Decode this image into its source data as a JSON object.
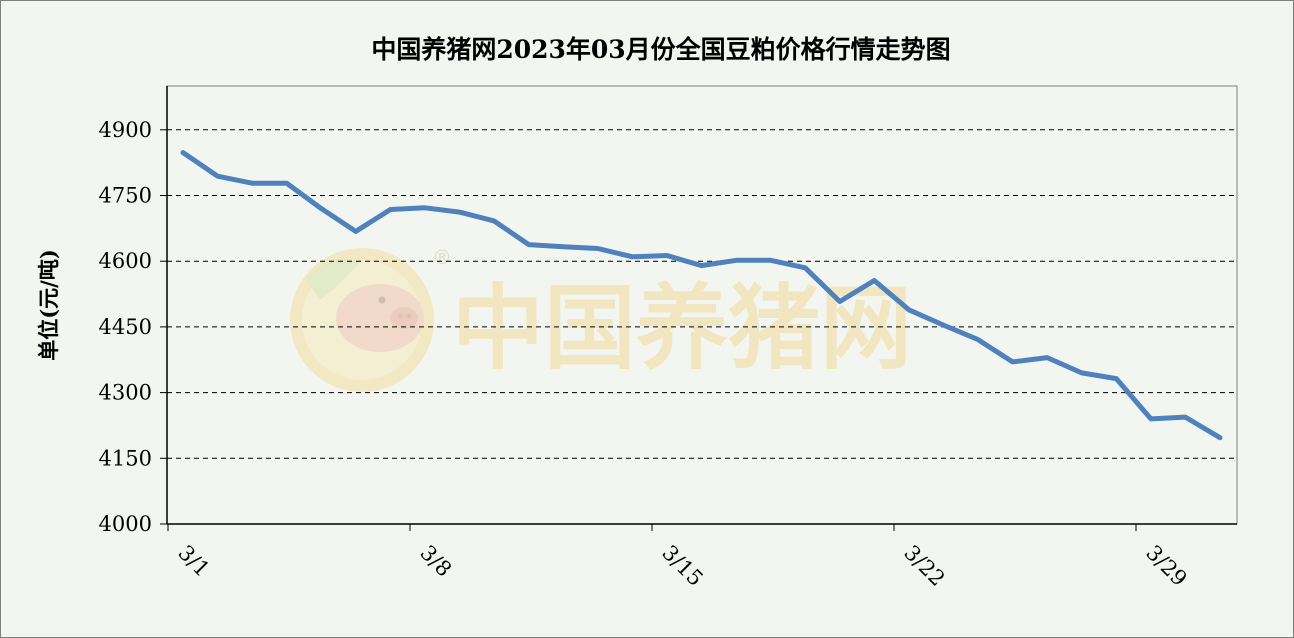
{
  "chart_data": {
    "type": "line",
    "title": "中国养猪网2023年03月份全国豆粕价格行情走势图",
    "ylabel": "单位(元/吨)",
    "xlabel": "",
    "ylim": [
      4000,
      5000
    ],
    "yticks": [
      4000,
      4150,
      4300,
      4450,
      4600,
      4750,
      4900
    ],
    "xtick_labels": [
      {
        "index": 0,
        "label": "3/1"
      },
      {
        "index": 7,
        "label": "3/8"
      },
      {
        "index": 14,
        "label": "3/15"
      },
      {
        "index": 21,
        "label": "3/22"
      },
      {
        "index": 28,
        "label": "3/29"
      }
    ],
    "grid": "horizontal-dashed",
    "x_count": 31,
    "series": [
      {
        "color": "#4f81bd",
        "values": [
          {
            "x": 0,
            "y": 4848
          },
          {
            "x": 1,
            "y": 4794
          },
          {
            "x": 2,
            "y": 4778
          },
          {
            "x": 3,
            "y": 4778
          },
          {
            "x": 4,
            "y": 4720
          },
          {
            "x": 5,
            "y": 4668
          },
          {
            "x": 6,
            "y": 4718
          },
          {
            "x": 7,
            "y": 4722
          },
          {
            "x": 8,
            "y": 4712
          },
          {
            "x": 9,
            "y": 4692
          },
          {
            "x": 10,
            "y": 4638
          },
          {
            "x": 11,
            "y": 4633
          },
          {
            "x": 12,
            "y": 4629
          },
          {
            "x": 13,
            "y": 4610
          },
          {
            "x": 14,
            "y": 4613
          },
          {
            "x": 15,
            "y": 4590
          },
          {
            "x": 16,
            "y": 4602
          },
          {
            "x": 17,
            "y": 4602
          },
          {
            "x": 18,
            "y": 4585
          },
          {
            "x": 19,
            "y": 4508
          },
          {
            "x": 20,
            "y": 4556
          },
          {
            "x": 21,
            "y": 4489
          },
          {
            "x": 22,
            "y": 4454
          },
          {
            "x": 23,
            "y": 4421
          },
          {
            "x": 24,
            "y": 4370
          },
          {
            "x": 25,
            "y": 4380
          },
          {
            "x": 26,
            "y": 4345
          },
          {
            "x": 27,
            "y": 4332
          },
          {
            "x": 28,
            "y": 4240
          },
          {
            "x": 29,
            "y": 4244
          },
          {
            "x": 30,
            "y": 4197
          }
        ]
      }
    ]
  },
  "watermark": {
    "text": "中国养猪网",
    "registered": "®"
  }
}
